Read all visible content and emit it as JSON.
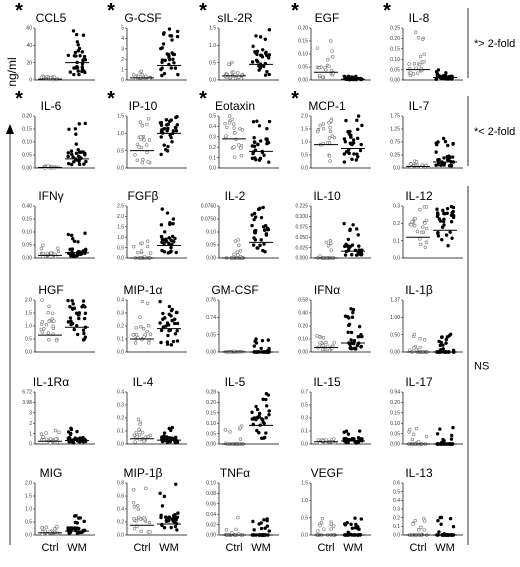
{
  "figure": {
    "y_axis_label": "ng/ml",
    "x_categories": [
      "Ctrl",
      "WM"
    ],
    "group_labels": [
      {
        "text": "*> 2-fold",
        "rows": [
          0,
          0
        ]
      },
      {
        "text": "*< 2-fold",
        "rows": [
          1,
          1
        ]
      },
      {
        "text": "NS",
        "rows": [
          2,
          5
        ]
      }
    ],
    "colors": {
      "ctrl": "#777777",
      "wm": "#000000",
      "median": "#000000"
    }
  },
  "chart_data": {
    "type": "scatter",
    "categories": [
      "Ctrl",
      "WM"
    ],
    "panels": [
      {
        "name": "CCL5",
        "significant": true,
        "ticks": [
          "60",
          "40",
          "20",
          "0"
        ],
        "ylim": [
          0,
          60
        ],
        "ctrl_median": 1,
        "wm_median": 20
      },
      {
        "name": "G-CSF",
        "significant": true,
        "ticks": [
          "5",
          "4",
          "3",
          "2",
          "1",
          "0"
        ],
        "ylim": [
          0,
          5
        ],
        "ctrl_median": 0.2,
        "wm_median": 1.4
      },
      {
        "name": "sIL-2R",
        "significant": true,
        "ticks": [
          "1.5",
          "1.0",
          "0.5",
          "0.0"
        ],
        "ylim": [
          0,
          1.5
        ],
        "ctrl_median": 0.12,
        "wm_median": 0.45
      },
      {
        "name": "EGF",
        "significant": true,
        "ticks": [
          "0.20",
          "0.15",
          "0.10",
          "0.05",
          "0.00"
        ],
        "ylim": [
          0,
          0.2
        ],
        "ctrl_median": 0.03,
        "wm_median": 0.003
      },
      {
        "name": "IL-8",
        "significant": true,
        "ticks": [
          "0.25",
          "0.20",
          "0.15",
          "0.10",
          "0.05",
          "0.00"
        ],
        "ylim": [
          0,
          0.25
        ],
        "ctrl_median": 0.05,
        "wm_median": 0.012
      },
      {
        "name": "IL-6",
        "significant": true,
        "ticks": [
          "0.20",
          "0.15",
          "0.10",
          "0.05",
          "0.00"
        ],
        "ylim": [
          0,
          0.2
        ],
        "ctrl_median": 0.002,
        "wm_median": 0.035
      },
      {
        "name": "IP-10",
        "significant": true,
        "ticks": [
          "1.5",
          "1.0",
          "0.5",
          "0.0"
        ],
        "ylim": [
          0,
          1.5
        ],
        "ctrl_median": 0.5,
        "wm_median": 1.0
      },
      {
        "name": "Eotaxin",
        "significant": true,
        "ticks": [
          "0.5",
          "0.4",
          "0.3",
          "0.2",
          "0.1",
          "0.0"
        ],
        "ylim": [
          0,
          0.5
        ],
        "ctrl_median": 0.28,
        "wm_median": 0.16
      },
      {
        "name": "MCP-1",
        "significant": true,
        "ticks": [
          "2.0",
          "1.5",
          "1.0",
          "0.5",
          "0.0"
        ],
        "ylim": [
          0,
          2
        ],
        "ctrl_median": 0.9,
        "wm_median": 0.75
      },
      {
        "name": "IL-7",
        "significant": false,
        "ticks": [
          "1.75",
          "1.25",
          "0.75",
          "0.25",
          "0.0"
        ],
        "ylim": [
          0,
          1.75
        ],
        "ctrl_median": 0.05,
        "wm_median": 0.2
      },
      {
        "name": "IFNγ",
        "significant": false,
        "ticks": [
          "0.40",
          "0.15",
          "0.10",
          "0.05",
          "0.00"
        ],
        "ylim": [
          0,
          0.4
        ],
        "ctrl_median": 0.02,
        "wm_median": 0.04
      },
      {
        "name": "FGFβ",
        "significant": false,
        "ticks": [
          "2.5",
          "2.0",
          "1.5",
          "1.0",
          "0.5",
          "0.0"
        ],
        "ylim": [
          0,
          2.5
        ],
        "ctrl_median": 0.0,
        "wm_median": 0.6
      },
      {
        "name": "IL-2",
        "significant": false,
        "ticks": [
          "0.0760",
          "0.0750",
          "0.10",
          "0.05",
          "0.00"
        ],
        "ylim": [
          0,
          0.1
        ],
        "ctrl_median": 0.0,
        "wm_median": 0.03
      },
      {
        "name": "IL-10",
        "significant": false,
        "ticks": [
          "0.225",
          "0.100",
          "0.075",
          "0.050",
          "0.025",
          "0.000"
        ],
        "ylim": [
          0,
          0.225
        ],
        "ctrl_median": 0.0,
        "wm_median": 0.03
      },
      {
        "name": "IL-12",
        "significant": false,
        "ticks": [
          "0.3",
          "0.2",
          "0.1",
          "0.0"
        ],
        "ylim": [
          0,
          0.3
        ],
        "ctrl_median": 0.12,
        "wm_median": 0.16
      },
      {
        "name": "HGF",
        "significant": false,
        "ticks": [
          "2.0",
          "1.5",
          "1.0",
          "0.5",
          "0.0"
        ],
        "ylim": [
          0,
          2
        ],
        "ctrl_median": 0.65,
        "wm_median": 0.95
      },
      {
        "name": "MIP-1α",
        "significant": false,
        "ticks": [
          "0.4",
          "0.3",
          "0.2",
          "0.1",
          "0.0"
        ],
        "ylim": [
          0,
          0.4
        ],
        "ctrl_median": 0.1,
        "wm_median": 0.18
      },
      {
        "name": "GM-CSF",
        "significant": false,
        "ticks": [
          "0.76",
          "0.74",
          "0.05",
          "0.00"
        ],
        "ylim": [
          0,
          0.76
        ],
        "ctrl_median": 0.002,
        "wm_median": 0.0
      },
      {
        "name": "IFNα",
        "significant": false,
        "ticks": [
          "0.58",
          "0.40",
          "0.20",
          "0.10",
          "0.00"
        ],
        "ylim": [
          0,
          0.58
        ],
        "ctrl_median": 0.05,
        "wm_median": 0.1
      },
      {
        "name": "IL-1β",
        "significant": false,
        "ticks": [
          "1.37",
          "1.00",
          "0.50",
          "0.00"
        ],
        "ylim": [
          0,
          1.37
        ],
        "ctrl_median": 0.0,
        "wm_median": 0.0
      },
      {
        "name": "IL-1Rα",
        "significant": false,
        "ticks": [
          "6.72",
          "3.98",
          "3",
          "2",
          "1",
          "0"
        ],
        "ylim": [
          0,
          6.72
        ],
        "ctrl_median": 0.35,
        "wm_median": 0.45
      },
      {
        "name": "IL-4",
        "significant": false,
        "ticks": [
          "0.4",
          "0.3",
          "0.2",
          "0.1",
          "0.0"
        ],
        "ylim": [
          0,
          0.4
        ],
        "ctrl_median": 0.04,
        "wm_median": 0.03
      },
      {
        "name": "IL-5",
        "significant": false,
        "ticks": [
          "0.28",
          "0.20",
          "0.15",
          "0.10",
          "0.05",
          "0.00"
        ],
        "ylim": [
          0,
          0.28
        ],
        "ctrl_median": 0.0,
        "wm_median": 0.1
      },
      {
        "name": "IL-15",
        "significant": false,
        "ticks": [
          "0.7",
          "0.5",
          "0.3",
          "0.1",
          "0.0"
        ],
        "ylim": [
          0,
          0.7
        ],
        "ctrl_median": 0.03,
        "wm_median": 0.04
      },
      {
        "name": "IL-17",
        "significant": false,
        "ticks": [
          "0.94",
          "0.20",
          "0.15",
          "0.10",
          "0.05",
          "0.00"
        ],
        "ylim": [
          0,
          0.94
        ],
        "ctrl_median": 0.0,
        "wm_median": 0.0
      },
      {
        "name": "MIG",
        "significant": false,
        "ticks": [
          "2.0",
          "1.5",
          "1.0",
          "0.5",
          "0.0"
        ],
        "ylim": [
          0,
          2
        ],
        "ctrl_median": 0.08,
        "wm_median": 0.15
      },
      {
        "name": "MIP-1β",
        "significant": false,
        "ticks": [
          "0.8",
          "0.6",
          "0.4",
          "0.2",
          "0.0"
        ],
        "ylim": [
          0,
          0.8
        ],
        "ctrl_median": 0.15,
        "wm_median": 0.17
      },
      {
        "name": "TNFα",
        "significant": false,
        "ticks": [
          "0.10",
          "0.08",
          "0.06",
          "0.04",
          "0.02",
          "0.00"
        ],
        "ylim": [
          0,
          0.1
        ],
        "ctrl_median": 0.0,
        "wm_median": 0.0
      },
      {
        "name": "VEGF",
        "significant": false,
        "ticks": [
          "1.5",
          "1.0",
          "0.5",
          "0.0"
        ],
        "ylim": [
          0,
          1.5
        ],
        "ctrl_median": 0.0,
        "wm_median": 0.0
      },
      {
        "name": "IL-13",
        "significant": false,
        "ticks": [
          "0.6",
          "0.5",
          "0.4",
          "0.3",
          "0.2",
          "0.1",
          "0.0"
        ],
        "ylim": [
          0,
          0.6
        ],
        "ctrl_median": 0.0,
        "wm_median": 0.0
      }
    ]
  }
}
